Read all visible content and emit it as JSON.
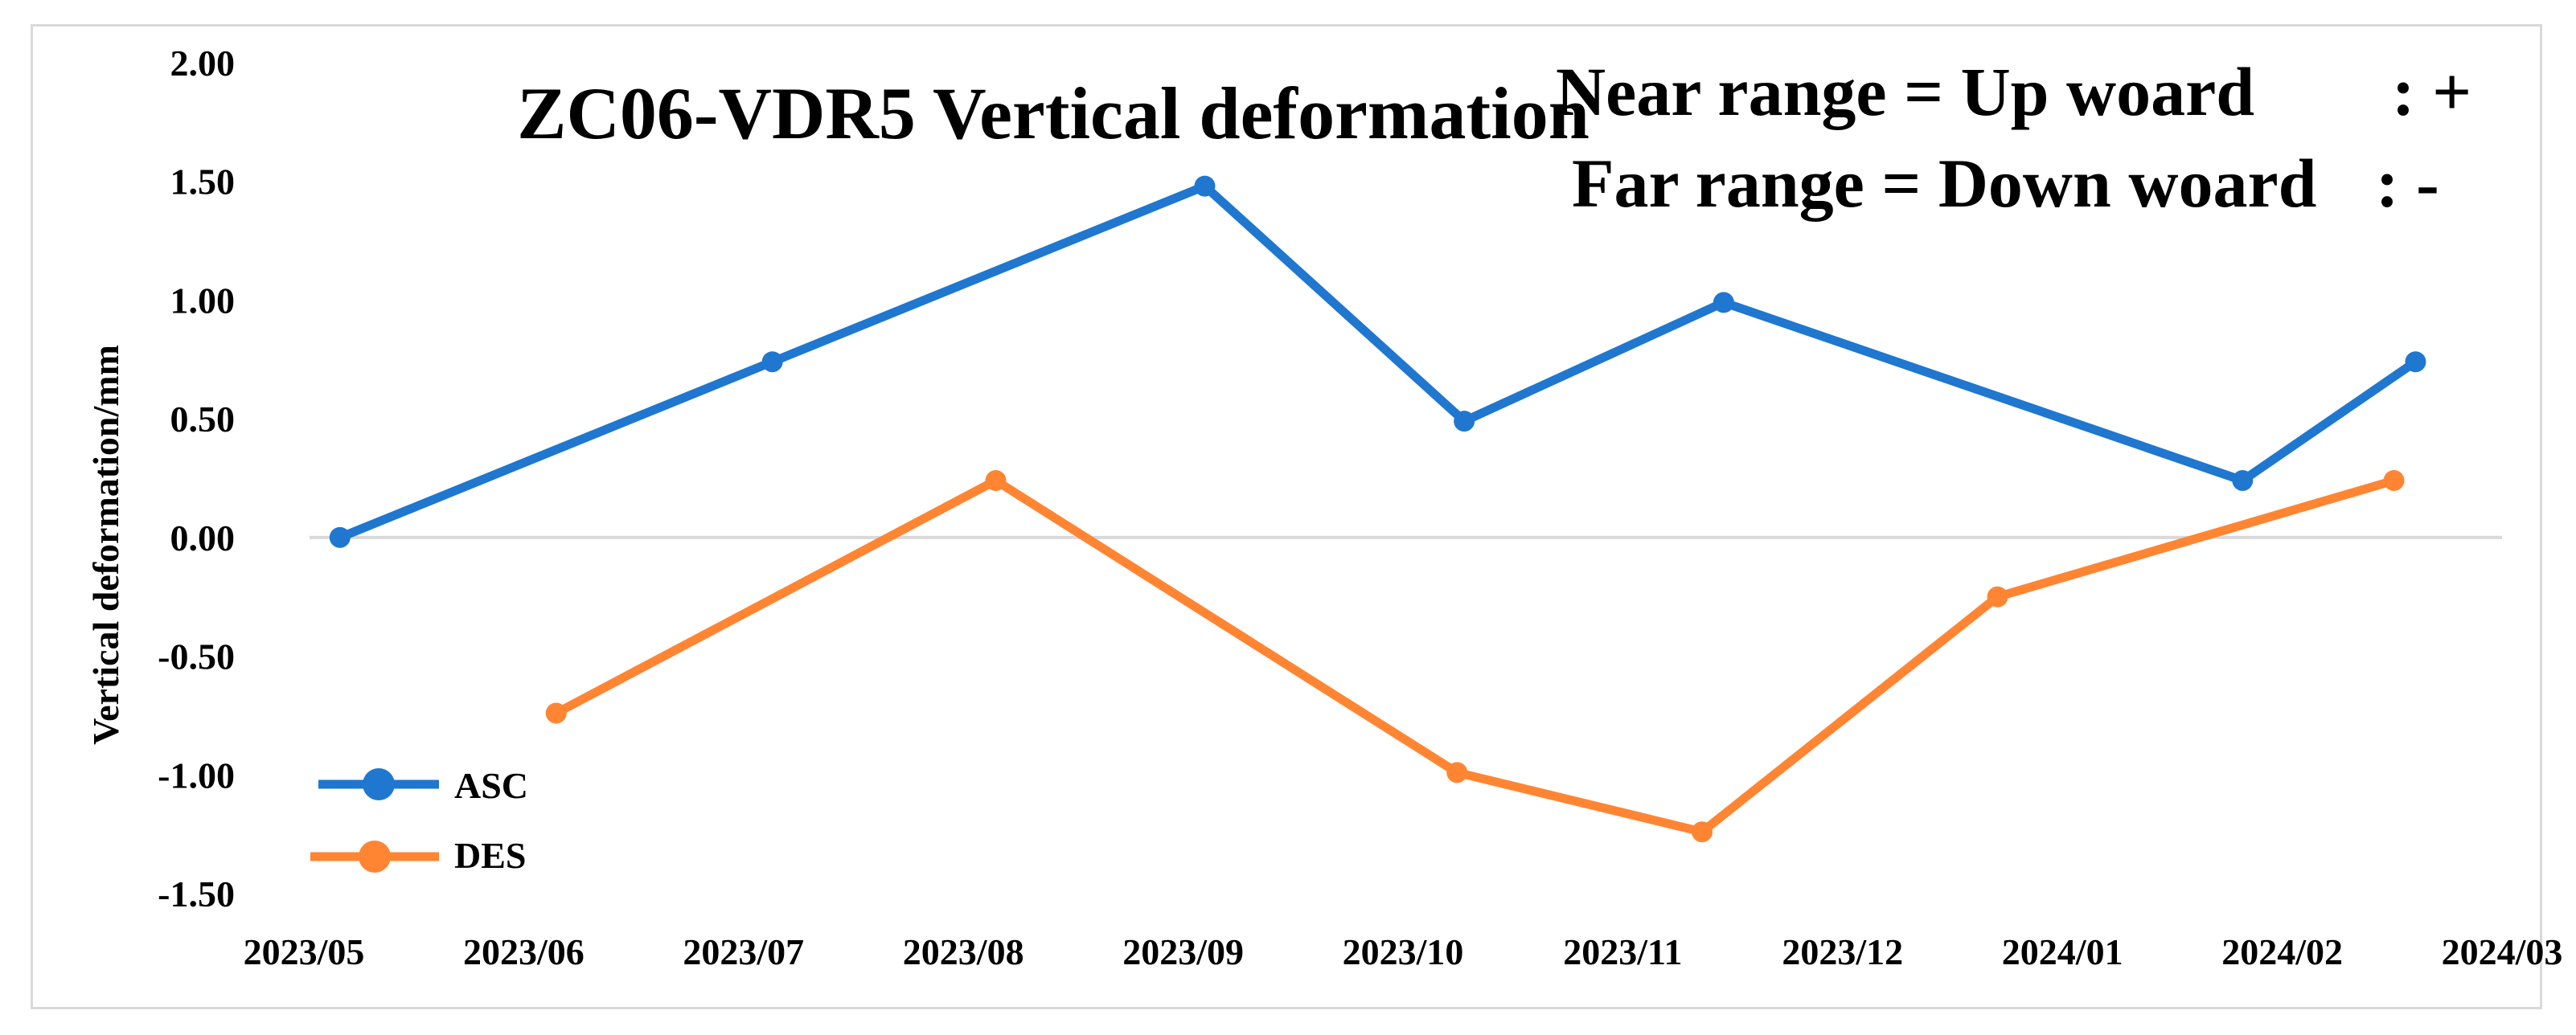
{
  "chart_data": {
    "type": "line",
    "title": "ZC06-VDR5  Vertical deformation",
    "xlabel": "",
    "ylabel": "Vertical deformation/mm",
    "annotations": [
      {
        "left": "Near range = Up woard",
        "right": ": +"
      },
      {
        "left": "Far range = Down woard",
        "right": ": -"
      }
    ],
    "x_tick_labels": [
      "2023/05",
      "2023/06",
      "2023/07",
      "2023/08",
      "2023/09",
      "2023/10",
      "2023/11",
      "2023/12",
      "2024/01",
      "2024/02",
      "2024/03"
    ],
    "y_tick_labels": [
      "2.00",
      "1.50",
      "1.00",
      "0.50",
      "0.00",
      "-0.50",
      "-1.00",
      "-1.50"
    ],
    "ylim": [
      -1.5,
      2.0
    ],
    "xlim": [
      "2023-05-01",
      "2024-03-01"
    ],
    "zero_line": true,
    "legend_position": "bottom-left",
    "series": [
      {
        "name": "ASC",
        "color": "#1f77cf",
        "points": [
          {
            "x": "2023-05-06",
            "y": 0.0
          },
          {
            "x": "2023-07-05",
            "y": 0.74
          },
          {
            "x": "2023-09-03",
            "y": 1.48
          },
          {
            "x": "2023-10-09",
            "y": 0.49
          },
          {
            "x": "2023-11-14",
            "y": 0.99
          },
          {
            "x": "2024-01-25",
            "y": 0.24
          },
          {
            "x": "2024-02-18",
            "y": 0.74
          }
        ]
      },
      {
        "name": "DES",
        "color": "#ff8533",
        "points": [
          {
            "x": "2023-06-05",
            "y": -0.74
          },
          {
            "x": "2023-08-05",
            "y": 0.24
          },
          {
            "x": "2023-10-08",
            "y": -0.99
          },
          {
            "x": "2023-11-11",
            "y": -1.24
          },
          {
            "x": "2023-12-22",
            "y": -0.25
          },
          {
            "x": "2024-02-15",
            "y": 0.24
          }
        ]
      }
    ]
  }
}
